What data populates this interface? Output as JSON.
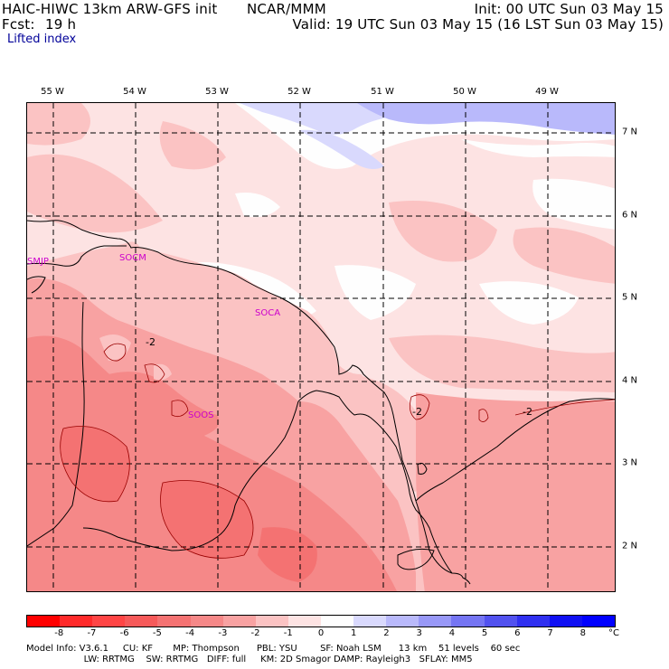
{
  "header": {
    "title_left": "HAIC-HIWC 13km ARW-GFS init",
    "org": "NCAR/MMM",
    "init": "Init: 00 UTC Sun 03 May 15",
    "fcst_label": "Fcst:",
    "fcst_value": "19 h",
    "valid": "Valid: 19 UTC Sun 03 May 15 (16 LST Sun 03 May 15)",
    "field": "Lifted index"
  },
  "map": {
    "longitude_labels": [
      "55 W",
      "54 W",
      "53 W",
      "52 W",
      "51 W",
      "50 W",
      "49 W"
    ],
    "latitude_labels": [
      "7 N",
      "6 N",
      "5 N",
      "4 N",
      "3 N",
      "2 N"
    ],
    "stations": [
      "SMJP",
      "SOCM",
      "SOCA",
      "SOOS"
    ],
    "contour_labels": [
      "-2",
      "-2",
      "-2"
    ]
  },
  "colorbar": {
    "unit": "°C",
    "tick_labels": [
      "-8",
      "-7",
      "-6",
      "-5",
      "-4",
      "-3",
      "-2",
      "-1",
      "0",
      "1",
      "2",
      "3",
      "4",
      "5",
      "6",
      "7",
      "8"
    ],
    "colors": [
      "#ff0000",
      "#ff2a2a",
      "#ff4545",
      "#f65a5a",
      "#f47272",
      "#f58888",
      "#f8a2a2",
      "#fbc3c3",
      "#fde3e3",
      "#fefefe",
      "#d9d9fd",
      "#b9b9fb",
      "#9898f7",
      "#7575f3",
      "#5252ef",
      "#3030f0",
      "#1010f3",
      "#0000ff"
    ]
  },
  "footer": {
    "line1": "Model Info: V3.6.1     CU: KF       MP: Thompson      PBL: YSU        SF: Noah LSM      13 km    51 levels    60 sec",
    "line2": "                    LW: RRTMG    SW: RRTMG   DIFF: full     KM: 2D Smagor DAMP: Rayleigh3   SFLAY: MM5"
  }
}
